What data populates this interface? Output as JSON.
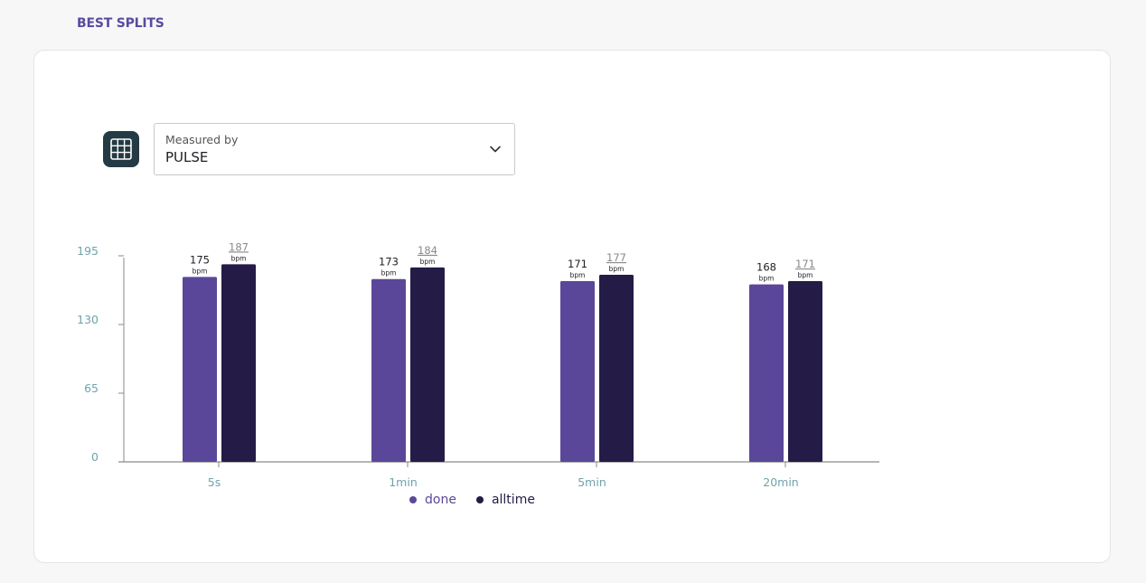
{
  "section": {
    "title": "BEST SPLITS"
  },
  "controls": {
    "grid_icon": "grid-table-icon",
    "measured_label": "Measured by",
    "measured_value": "PULSE",
    "chevron_icon": "chevron-down-icon"
  },
  "colors": {
    "done": "#5b4799",
    "alltime": "#251b47",
    "axis_label": "#6fa3ad",
    "accent": "#5a4a9e",
    "grid_button": "#243a44"
  },
  "chart_data": {
    "type": "bar",
    "categories": [
      "5s",
      "1min",
      "5min",
      "20min"
    ],
    "unit": "bpm",
    "series": [
      {
        "name": "done",
        "values": [
          175,
          173,
          171,
          168
        ]
      },
      {
        "name": "alltime",
        "values": [
          187,
          184,
          177,
          171
        ]
      }
    ],
    "yticks": [
      "195",
      "130",
      "65",
      "0"
    ],
    "ytick_values": [
      195,
      130,
      65,
      0
    ],
    "ylim": [
      0,
      195
    ],
    "legend_position": "bottom-center",
    "grid": false
  }
}
